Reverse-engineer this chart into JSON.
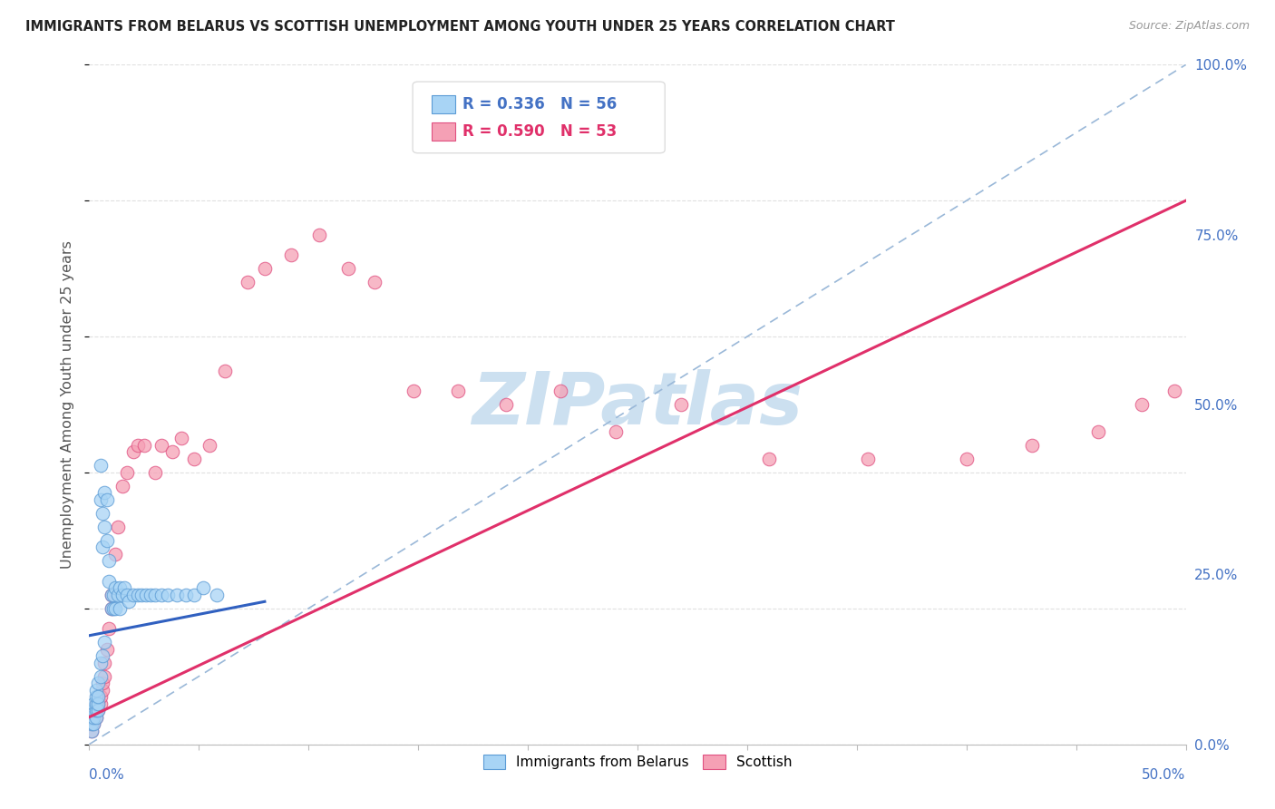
{
  "title": "IMMIGRANTS FROM BELARUS VS SCOTTISH UNEMPLOYMENT AMONG YOUTH UNDER 25 YEARS CORRELATION CHART",
  "source": "Source: ZipAtlas.com",
  "ylabel": "Unemployment Among Youth under 25 years",
  "ytick_labels": [
    "0.0%",
    "25.0%",
    "50.0%",
    "75.0%",
    "100.0%"
  ],
  "ytick_values": [
    0.0,
    0.25,
    0.5,
    0.75,
    1.0
  ],
  "xlim": [
    0.0,
    0.5
  ],
  "ylim": [
    0.0,
    1.0
  ],
  "legend_blue_label": "Immigrants from Belarus",
  "legend_pink_label": "Scottish",
  "legend_R_blue": "R = 0.336",
  "legend_N_blue": "N = 56",
  "legend_R_pink": "R = 0.590",
  "legend_N_pink": "N = 53",
  "blue_color": "#a8d4f5",
  "blue_edge_color": "#5b9bd5",
  "pink_color": "#f5a0b5",
  "pink_edge_color": "#e05080",
  "blue_line_color": "#3060c0",
  "pink_line_color": "#e0306a",
  "ref_line_color": "#9ab8d8",
  "watermark_color": "#cce0f0",
  "background_color": "#ffffff",
  "grid_color": "#e0e0e0",
  "blue_scatter_x": [
    0.001,
    0.001,
    0.001,
    0.002,
    0.002,
    0.002,
    0.002,
    0.003,
    0.003,
    0.003,
    0.003,
    0.003,
    0.004,
    0.004,
    0.004,
    0.004,
    0.005,
    0.005,
    0.005,
    0.005,
    0.006,
    0.006,
    0.006,
    0.007,
    0.007,
    0.007,
    0.008,
    0.008,
    0.009,
    0.009,
    0.01,
    0.01,
    0.011,
    0.011,
    0.012,
    0.012,
    0.013,
    0.014,
    0.014,
    0.015,
    0.016,
    0.017,
    0.018,
    0.02,
    0.022,
    0.024,
    0.026,
    0.028,
    0.03,
    0.033,
    0.036,
    0.04,
    0.044,
    0.048,
    0.052,
    0.058
  ],
  "blue_scatter_y": [
    0.02,
    0.03,
    0.04,
    0.03,
    0.04,
    0.05,
    0.06,
    0.04,
    0.05,
    0.06,
    0.07,
    0.08,
    0.05,
    0.06,
    0.07,
    0.09,
    0.41,
    0.36,
    0.1,
    0.12,
    0.34,
    0.29,
    0.13,
    0.37,
    0.32,
    0.15,
    0.36,
    0.3,
    0.27,
    0.24,
    0.22,
    0.2,
    0.22,
    0.2,
    0.23,
    0.2,
    0.22,
    0.23,
    0.2,
    0.22,
    0.23,
    0.22,
    0.21,
    0.22,
    0.22,
    0.22,
    0.22,
    0.22,
    0.22,
    0.22,
    0.22,
    0.22,
    0.22,
    0.22,
    0.23,
    0.22
  ],
  "pink_scatter_x": [
    0.001,
    0.001,
    0.001,
    0.002,
    0.002,
    0.003,
    0.003,
    0.003,
    0.004,
    0.004,
    0.005,
    0.005,
    0.006,
    0.006,
    0.007,
    0.007,
    0.008,
    0.009,
    0.01,
    0.01,
    0.012,
    0.013,
    0.015,
    0.017,
    0.02,
    0.022,
    0.025,
    0.03,
    0.033,
    0.038,
    0.042,
    0.048,
    0.055,
    0.062,
    0.072,
    0.08,
    0.092,
    0.105,
    0.118,
    0.13,
    0.148,
    0.168,
    0.19,
    0.215,
    0.24,
    0.27,
    0.31,
    0.355,
    0.4,
    0.43,
    0.46,
    0.48,
    0.495
  ],
  "pink_scatter_y": [
    0.02,
    0.03,
    0.04,
    0.03,
    0.04,
    0.04,
    0.05,
    0.06,
    0.05,
    0.06,
    0.06,
    0.07,
    0.08,
    0.09,
    0.1,
    0.12,
    0.14,
    0.17,
    0.2,
    0.22,
    0.28,
    0.32,
    0.38,
    0.4,
    0.43,
    0.44,
    0.44,
    0.4,
    0.44,
    0.43,
    0.45,
    0.42,
    0.44,
    0.55,
    0.68,
    0.7,
    0.72,
    0.75,
    0.7,
    0.68,
    0.52,
    0.52,
    0.5,
    0.52,
    0.46,
    0.5,
    0.42,
    0.42,
    0.42,
    0.44,
    0.46,
    0.5,
    0.52
  ],
  "blue_trendline_x": [
    0.0,
    0.08
  ],
  "blue_trendline_y": [
    0.16,
    0.21
  ],
  "pink_trendline_x": [
    0.0,
    0.5
  ],
  "pink_trendline_y": [
    0.04,
    0.8
  ]
}
